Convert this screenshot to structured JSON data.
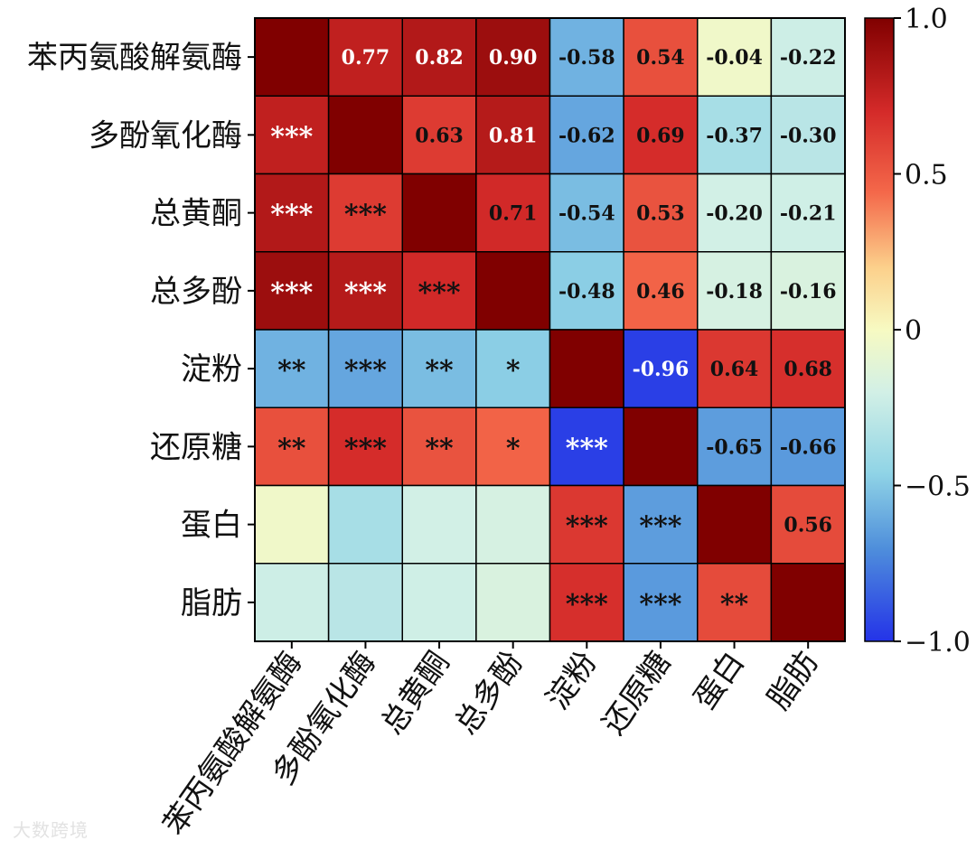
{
  "chart_data": {
    "type": "heatmap",
    "variables": [
      "苯丙氨酸解氨酶",
      "多酚氧化酶",
      "总黄酮",
      "总多酚",
      "淀粉",
      "还原糖",
      "蛋白",
      "脂肪"
    ],
    "correlations": [
      [
        1.0,
        0.77,
        0.82,
        0.9,
        -0.58,
        0.54,
        -0.04,
        -0.22
      ],
      [
        0.77,
        1.0,
        0.63,
        0.81,
        -0.62,
        0.69,
        -0.37,
        -0.3
      ],
      [
        0.82,
        0.63,
        1.0,
        0.71,
        -0.54,
        0.53,
        -0.2,
        -0.21
      ],
      [
        0.9,
        0.81,
        0.71,
        1.0,
        -0.48,
        0.46,
        -0.18,
        -0.16
      ],
      [
        -0.58,
        -0.62,
        -0.54,
        -0.48,
        1.0,
        -0.96,
        0.64,
        0.68
      ],
      [
        0.54,
        0.69,
        0.53,
        0.46,
        -0.96,
        1.0,
        -0.65,
        -0.66
      ],
      [
        -0.04,
        -0.37,
        -0.2,
        -0.18,
        0.64,
        -0.65,
        1.0,
        0.56
      ],
      [
        -0.22,
        -0.3,
        -0.21,
        -0.16,
        0.68,
        -0.66,
        0.56,
        1.0
      ]
    ],
    "significance": [
      [
        "",
        "",
        "",
        "",
        "",
        "",
        "",
        ""
      ],
      [
        "***",
        "",
        "",
        "",
        "",
        "",
        "",
        ""
      ],
      [
        "***",
        "***",
        "",
        "",
        "",
        "",
        "",
        ""
      ],
      [
        "***",
        "***",
        "***",
        "",
        "",
        "",
        "",
        ""
      ],
      [
        "**",
        "***",
        "**",
        "*",
        "",
        "",
        "",
        ""
      ],
      [
        "**",
        "***",
        "**",
        "*",
        "***",
        "",
        "",
        ""
      ],
      [
        "",
        "",
        "",
        "",
        "***",
        "***",
        "",
        ""
      ],
      [
        "",
        "",
        "",
        "",
        "***",
        "***",
        "**",
        ""
      ]
    ],
    "upper_triangle": "values",
    "lower_triangle": "significance",
    "colormap": "RdYlBu_r",
    "colorbar": {
      "range": [
        -1.0,
        1.0
      ],
      "ticks": [
        "1.0",
        "0.5",
        "0",
        "−0.5",
        "−1.0"
      ],
      "tick_values": [
        1.0,
        0.5,
        0,
        -0.5,
        -1.0
      ]
    }
  },
  "watermark": "大数跨境"
}
